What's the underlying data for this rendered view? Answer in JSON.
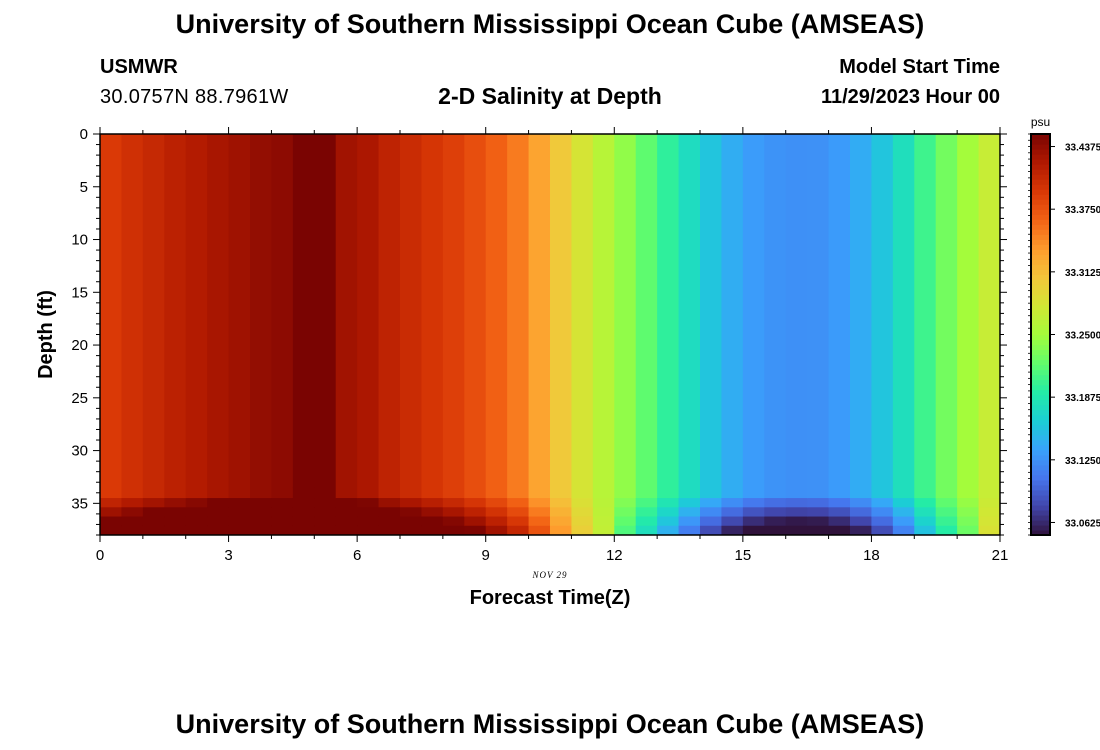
{
  "header": {
    "title": "University of Southern Mississippi Ocean Cube (AMSEAS)",
    "station": "USMWR",
    "coordinates": "30.0757N  88.7961W",
    "subtitle": "2-D Salinity at Depth",
    "model_start_label": "Model Start Time",
    "model_start_value": "11/29/2023 Hour 00"
  },
  "footer": {
    "title_repeat": "University of Southern Mississippi Ocean Cube (AMSEAS)"
  },
  "chart_data": {
    "type": "heatmap",
    "title": "2-D Salinity at Depth",
    "xlabel": "Forecast Time(Z)",
    "ylabel": "Depth (ft)",
    "date_label": "NOV 29",
    "xlim": [
      0,
      21
    ],
    "ylim": [
      0,
      38
    ],
    "x_ticks": [
      0,
      3,
      6,
      9,
      12,
      15,
      18,
      21
    ],
    "y_ticks": [
      0,
      5,
      10,
      15,
      20,
      25,
      30,
      35
    ],
    "time_steps_per_hour": 2,
    "column_salinity_psu": [
      33.392,
      33.4,
      33.407,
      33.414,
      33.42,
      33.426,
      33.431,
      33.437,
      33.44,
      33.455,
      33.455,
      33.43,
      33.424,
      33.412,
      33.404,
      33.396,
      33.388,
      33.378,
      33.366,
      33.352,
      33.33,
      33.305,
      33.282,
      33.262,
      33.242,
      33.22,
      33.198,
      33.177,
      33.158,
      33.143,
      33.132,
      33.126,
      33.124,
      33.125,
      33.131,
      33.142,
      33.158,
      33.179,
      33.205,
      33.229,
      33.25,
      33.272
    ],
    "deep_cell_column_range": [
      4.3,
      5.2
    ],
    "deep_cell_bottom_ft": 33.5,
    "bottom_layer_top_ft": 34.5,
    "bottom_layer_max_offset_psu": 0.06,
    "colorbar": {
      "unit": "psu",
      "range": [
        33.05,
        33.45
      ],
      "ticks": [
        "33.0625",
        "33.1250",
        "33.1875",
        "33.2500",
        "33.3125",
        "33.3750",
        "33.4375"
      ],
      "tick_values": [
        33.0625,
        33.125,
        33.1875,
        33.25,
        33.3125,
        33.375,
        33.4375
      ],
      "colors": [
        "#30123b",
        "#4145ab",
        "#4675ed",
        "#39a2fc",
        "#1bcfd4",
        "#24eca6",
        "#61fc6c",
        "#a4fc3b",
        "#d1e834",
        "#f3c63a",
        "#fe9b2d",
        "#f36315",
        "#d93806",
        "#b11901",
        "#7a0402"
      ]
    }
  }
}
